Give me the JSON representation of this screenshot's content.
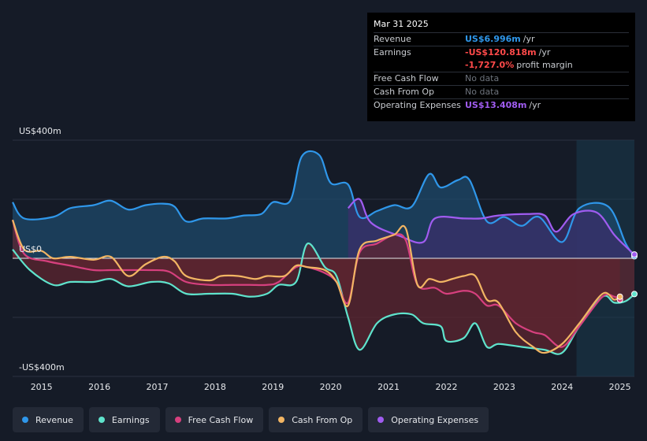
{
  "tooltip": {
    "date": "Mar 31 2025",
    "rows": [
      {
        "label": "Revenue",
        "value": "US$6.996m",
        "unit": "/yr",
        "color": "#2f97ea"
      },
      {
        "label": "Earnings",
        "value": "-US$120.818m",
        "unit": "/yr",
        "color": "#ff4a4a"
      },
      {
        "label": "",
        "value": "-1,727.0%",
        "unit": "profit margin",
        "color": "#ff4a4a"
      },
      {
        "label": "Free Cash Flow",
        "value": "No data",
        "unit": "",
        "color": ""
      },
      {
        "label": "Cash From Op",
        "value": "No data",
        "unit": "",
        "color": ""
      },
      {
        "label": "Operating Expenses",
        "value": "US$13.408m",
        "unit": "/yr",
        "color": "#a05cf0"
      }
    ]
  },
  "legend": [
    {
      "label": "Revenue",
      "color": "#2f97ea"
    },
    {
      "label": "Earnings",
      "color": "#5fe3cc"
    },
    {
      "label": "Free Cash Flow",
      "color": "#d6407e"
    },
    {
      "label": "Cash From Op",
      "color": "#f2b563"
    },
    {
      "label": "Operating Expenses",
      "color": "#a05cf0"
    }
  ],
  "chart_data": {
    "type": "area",
    "y_labels": {
      "top": "US$400m",
      "zero": "US$0",
      "bottom": "-US$400m"
    },
    "ylim": [
      -400,
      400
    ],
    "xlim": [
      2014.5,
      2025.25
    ],
    "x_ticks": [
      2015,
      2016,
      2017,
      2018,
      2019,
      2020,
      2021,
      2022,
      2023,
      2024,
      2025
    ],
    "grid": true,
    "legend_position": "bottom",
    "forecast_region_start": 2024.25,
    "series": [
      {
        "name": "Revenue",
        "color": "#2f97ea",
        "fill": "#1d4a6b",
        "points": [
          [
            2014.5,
            190
          ],
          [
            2014.7,
            135
          ],
          [
            2015.2,
            140
          ],
          [
            2015.5,
            170
          ],
          [
            2015.9,
            180
          ],
          [
            2016.2,
            195
          ],
          [
            2016.5,
            165
          ],
          [
            2016.8,
            180
          ],
          [
            2017.1,
            185
          ],
          [
            2017.3,
            175
          ],
          [
            2017.5,
            125
          ],
          [
            2017.8,
            135
          ],
          [
            2018.2,
            135
          ],
          [
            2018.5,
            145
          ],
          [
            2018.8,
            150
          ],
          [
            2019.0,
            190
          ],
          [
            2019.3,
            195
          ],
          [
            2019.5,
            345
          ],
          [
            2019.8,
            350
          ],
          [
            2020.0,
            255
          ],
          [
            2020.3,
            250
          ],
          [
            2020.5,
            140
          ],
          [
            2020.8,
            160
          ],
          [
            2021.1,
            180
          ],
          [
            2021.4,
            175
          ],
          [
            2021.7,
            285
          ],
          [
            2021.9,
            240
          ],
          [
            2022.2,
            265
          ],
          [
            2022.4,
            265
          ],
          [
            2022.7,
            125
          ],
          [
            2023.0,
            140
          ],
          [
            2023.3,
            110
          ],
          [
            2023.6,
            140
          ],
          [
            2024.0,
            55
          ],
          [
            2024.3,
            170
          ],
          [
            2024.8,
            175
          ],
          [
            2025.1,
            50
          ],
          [
            2025.25,
            7
          ]
        ]
      },
      {
        "name": "Operating Expenses",
        "color": "#a05cf0",
        "fill": "#3b2f6b",
        "points": [
          [
            2020.3,
            170
          ],
          [
            2020.5,
            200
          ],
          [
            2020.7,
            120
          ],
          [
            2021.2,
            75
          ],
          [
            2021.6,
            55
          ],
          [
            2021.8,
            135
          ],
          [
            2022.3,
            135
          ],
          [
            2022.6,
            135
          ],
          [
            2022.9,
            145
          ],
          [
            2023.4,
            150
          ],
          [
            2023.7,
            145
          ],
          [
            2023.9,
            90
          ],
          [
            2024.2,
            150
          ],
          [
            2024.6,
            155
          ],
          [
            2024.9,
            80
          ],
          [
            2025.1,
            40
          ],
          [
            2025.25,
            13
          ]
        ]
      },
      {
        "name": "Earnings",
        "color": "#5fe3cc",
        "fill": "#5e2530",
        "points": [
          [
            2014.5,
            30
          ],
          [
            2014.8,
            -40
          ],
          [
            2015.2,
            -90
          ],
          [
            2015.5,
            -80
          ],
          [
            2015.9,
            -80
          ],
          [
            2016.2,
            -70
          ],
          [
            2016.5,
            -95
          ],
          [
            2016.9,
            -80
          ],
          [
            2017.2,
            -85
          ],
          [
            2017.5,
            -120
          ],
          [
            2017.9,
            -120
          ],
          [
            2018.3,
            -120
          ],
          [
            2018.6,
            -130
          ],
          [
            2018.9,
            -120
          ],
          [
            2019.1,
            -90
          ],
          [
            2019.4,
            -80
          ],
          [
            2019.6,
            50
          ],
          [
            2019.9,
            -30
          ],
          [
            2020.1,
            -60
          ],
          [
            2020.3,
            -200
          ],
          [
            2020.5,
            -310
          ],
          [
            2020.8,
            -220
          ],
          [
            2021.1,
            -190
          ],
          [
            2021.4,
            -190
          ],
          [
            2021.6,
            -220
          ],
          [
            2021.9,
            -230
          ],
          [
            2022.0,
            -280
          ],
          [
            2022.3,
            -270
          ],
          [
            2022.5,
            -220
          ],
          [
            2022.7,
            -300
          ],
          [
            2022.9,
            -290
          ],
          [
            2023.3,
            -300
          ],
          [
            2023.7,
            -310
          ],
          [
            2024.0,
            -320
          ],
          [
            2024.3,
            -230
          ],
          [
            2024.7,
            -130
          ],
          [
            2024.9,
            -150
          ],
          [
            2025.1,
            -145
          ],
          [
            2025.25,
            -121
          ]
        ]
      },
      {
        "name": "Free Cash Flow",
        "color": "#d6407e",
        "fill": "#5e2530",
        "points": [
          [
            2014.5,
            130
          ],
          [
            2014.7,
            15
          ],
          [
            2015.1,
            -10
          ],
          [
            2015.5,
            -25
          ],
          [
            2015.9,
            -40
          ],
          [
            2016.2,
            -40
          ],
          [
            2016.5,
            -40
          ],
          [
            2016.9,
            -40
          ],
          [
            2017.2,
            -45
          ],
          [
            2017.5,
            -80
          ],
          [
            2017.9,
            -90
          ],
          [
            2018.3,
            -90
          ],
          [
            2018.6,
            -90
          ],
          [
            2018.9,
            -90
          ],
          [
            2019.1,
            -80
          ],
          [
            2019.4,
            -30
          ],
          [
            2019.6,
            -30
          ],
          [
            2019.9,
            -50
          ],
          [
            2020.1,
            -80
          ],
          [
            2020.3,
            -150
          ],
          [
            2020.5,
            20
          ],
          [
            2020.8,
            50
          ],
          [
            2021.1,
            80
          ],
          [
            2021.3,
            60
          ],
          [
            2021.5,
            -90
          ],
          [
            2021.8,
            -100
          ],
          [
            2022.0,
            -120
          ],
          [
            2022.3,
            -110
          ],
          [
            2022.5,
            -120
          ],
          [
            2022.7,
            -160
          ],
          [
            2022.9,
            -160
          ],
          [
            2023.2,
            -220
          ],
          [
            2023.5,
            -250
          ],
          [
            2023.7,
            -260
          ],
          [
            2024.0,
            -300
          ],
          [
            2024.3,
            -230
          ],
          [
            2024.7,
            -130
          ],
          [
            2024.9,
            -130
          ],
          [
            2025.0,
            -140
          ]
        ]
      },
      {
        "name": "Cash From Op",
        "color": "#f2b563",
        "fill": "none",
        "points": [
          [
            2014.5,
            130
          ],
          [
            2014.7,
            30
          ],
          [
            2015.0,
            25
          ],
          [
            2015.2,
            0
          ],
          [
            2015.5,
            5
          ],
          [
            2015.9,
            -5
          ],
          [
            2016.2,
            5
          ],
          [
            2016.5,
            -60
          ],
          [
            2016.8,
            -20
          ],
          [
            2017.1,
            5
          ],
          [
            2017.3,
            -10
          ],
          [
            2017.5,
            -60
          ],
          [
            2017.9,
            -75
          ],
          [
            2018.1,
            -60
          ],
          [
            2018.4,
            -60
          ],
          [
            2018.7,
            -70
          ],
          [
            2018.9,
            -60
          ],
          [
            2019.2,
            -60
          ],
          [
            2019.4,
            -25
          ],
          [
            2019.6,
            -30
          ],
          [
            2019.9,
            -40
          ],
          [
            2020.1,
            -80
          ],
          [
            2020.3,
            -160
          ],
          [
            2020.5,
            30
          ],
          [
            2020.8,
            60
          ],
          [
            2021.1,
            80
          ],
          [
            2021.3,
            100
          ],
          [
            2021.5,
            -90
          ],
          [
            2021.7,
            -70
          ],
          [
            2021.9,
            -80
          ],
          [
            2022.1,
            -70
          ],
          [
            2022.3,
            -60
          ],
          [
            2022.5,
            -60
          ],
          [
            2022.7,
            -140
          ],
          [
            2022.9,
            -150
          ],
          [
            2023.2,
            -250
          ],
          [
            2023.5,
            -300
          ],
          [
            2023.7,
            -320
          ],
          [
            2024.0,
            -290
          ],
          [
            2024.3,
            -220
          ],
          [
            2024.7,
            -120
          ],
          [
            2024.9,
            -140
          ],
          [
            2025.0,
            -130
          ]
        ]
      }
    ]
  }
}
